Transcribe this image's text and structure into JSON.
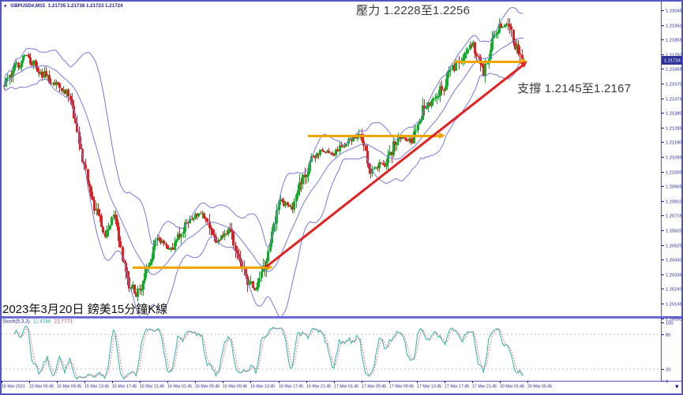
{
  "window": {
    "symbol_label": "GBPUSD#,M15",
    "quote_ohlc": "1.21735 1.21738 1.21723 1.21724",
    "dropdown_icon": "▼",
    "time_marker_icon": "▾"
  },
  "annotations": {
    "resistance": "壓力 1.2228至1.2256",
    "support": "支撐 1.2145至1.2167",
    "caption": "2023年3月20日 鎊美15分鐘K線"
  },
  "indicator": {
    "label": "Stoch(5,3,3)",
    "value_main": "11.4786",
    "value_signal": "22.7773"
  },
  "price_axis": {
    "current_price": "1.21724",
    "ticks": [
      "1.22045",
      "1.21950",
      "1.21855",
      "1.21760",
      "1.21665",
      "1.21570",
      "1.21475",
      "1.21380",
      "1.21285",
      "1.21190",
      "1.21095",
      "1.21000",
      "1.20905",
      "1.20810",
      "1.20715",
      "1.20620",
      "1.20525",
      "1.20430",
      "1.20335",
      "1.20240",
      "1.20145",
      "1.20050"
    ]
  },
  "stoch_axis": {
    "ticks": [
      "100",
      "80",
      "20",
      "0"
    ]
  },
  "time_axis": {
    "labels": [
      "15 Mar 2023",
      "15 Mar 05:45",
      "15 Mar 09:45",
      "15 Mar 13:45",
      "15 Mar 17:45",
      "15 Mar 21:45",
      "16 Mar 01:45",
      "16 Mar 05:45",
      "16 Mar 09:45",
      "16 Mar 13:45",
      "16 Mar 17:45",
      "16 Mar 21:45",
      "17 Mar 01:45",
      "17 Mar 05:45",
      "17 Mar 09:45",
      "17 Mar 13:45",
      "17 Mar 17:45",
      "17 Mar 21:45",
      "20 Mar 01:45",
      "20 Mar 05:45"
    ]
  },
  "colors": {
    "frame": "#5656c0",
    "divider": "#6a6ad8",
    "axis_text": "#1e1e96",
    "bull": "#0fae26",
    "bear": "#e02020",
    "bollinger": "#7878dc",
    "stoch_main": "#2cb4ac",
    "stoch_signal": "#e05a6e",
    "level_dash": "#c0c0c0",
    "trend_orange": "#f0a500",
    "trend_red": "#e02222",
    "badge_bg": "#32329b",
    "background": "#ffffff"
  },
  "chart_data": {
    "type": "candlestick",
    "symbol": "GBPUSD#",
    "timeframe": "M15",
    "title": "2023年3月20日 鎊美15分鐘K線",
    "quote": {
      "open": 1.21735,
      "high": 1.21738,
      "low": 1.21723,
      "close": 1.21724
    },
    "visible_price_range": [
      1.2005,
      1.22045
    ],
    "bars_visible": 300,
    "price_path": {
      "bar": [
        0,
        12,
        25,
        38,
        45,
        52,
        58,
        63,
        70,
        76,
        82,
        88,
        97,
        105,
        114,
        122,
        130,
        138,
        144,
        150,
        158,
        166,
        175,
        182,
        190,
        197,
        204,
        211,
        219,
        227,
        235,
        242,
        249,
        256,
        263,
        270,
        276,
        283,
        289,
        294,
        299
      ],
      "price": [
        1.2156,
        1.2176,
        1.216,
        1.2149,
        1.2109,
        1.2078,
        1.2058,
        1.2073,
        1.2032,
        1.202,
        1.2035,
        1.2055,
        1.205,
        1.2068,
        1.2073,
        1.2055,
        1.2063,
        1.2035,
        1.2022,
        1.2038,
        1.2081,
        1.2077,
        1.2104,
        1.2114,
        1.2112,
        1.2119,
        1.2123,
        1.2101,
        1.2106,
        1.2122,
        1.212,
        1.2142,
        1.2147,
        1.2163,
        1.2173,
        1.2183,
        1.2163,
        1.2191,
        1.2196,
        1.2183,
        1.21724
      ]
    },
    "overlay": {
      "name": "Bollinger Bands",
      "period": 20,
      "deviation": 2
    },
    "oscillator": {
      "name": "Stochastic",
      "params": "5,3,3",
      "percent_k": 11.4786,
      "percent_d": 22.7773,
      "levels": [
        20,
        80
      ],
      "scale": [
        0,
        100
      ]
    },
    "zones": {
      "resistance": [
        1.2228,
        1.2256
      ],
      "support": [
        1.2145,
        1.2167
      ]
    },
    "trend_objects": [
      {
        "name": "support-arrow-lower",
        "b1": 74,
        "p1": 1.20375,
        "b2": 152,
        "p2": 1.20375,
        "color_key": "trend_orange"
      },
      {
        "name": "resistance-arrow-mid",
        "b1": 175,
        "p1": 1.21228,
        "b2": 251,
        "p2": 1.21228,
        "color_key": "trend_orange"
      },
      {
        "name": "support-arrow-upper",
        "b1": 259,
        "p1": 1.21711,
        "b2": 298,
        "p2": 1.21711,
        "color_key": "trend_orange"
      },
      {
        "name": "ascending-trendline",
        "b1": 151,
        "p1": 1.2038,
        "b2": 299,
        "p2": 1.21688,
        "color_key": "trend_red"
      }
    ]
  }
}
